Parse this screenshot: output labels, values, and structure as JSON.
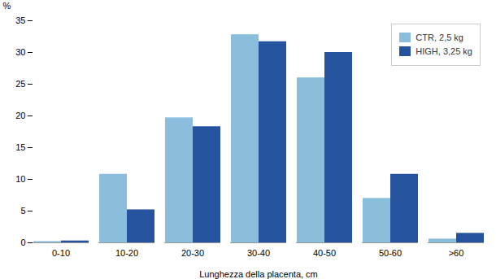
{
  "chart_data": {
    "type": "bar",
    "categories": [
      "0-10",
      "10-20",
      "20-30",
      "30-40",
      "40-50",
      "50-60",
      ">60"
    ],
    "series": [
      {
        "name": "CTR, 2,5 kg",
        "color": "#8BBDDD",
        "values": [
          0.2,
          10.8,
          19.7,
          32.8,
          26.0,
          7.0,
          0.6
        ]
      },
      {
        "name": "HIGH, 3,25 kg",
        "color": "#2653A0",
        "values": [
          0.3,
          5.2,
          18.3,
          31.7,
          30.0,
          10.8,
          1.5
        ]
      }
    ],
    "xlabel": "Lunghezza della placenta, cm",
    "ylabel": "%",
    "ylim": [
      0,
      35
    ],
    "yticks": [
      0,
      5,
      10,
      15,
      20,
      25,
      30,
      35
    ],
    "grid": false,
    "legend": "upper right"
  }
}
